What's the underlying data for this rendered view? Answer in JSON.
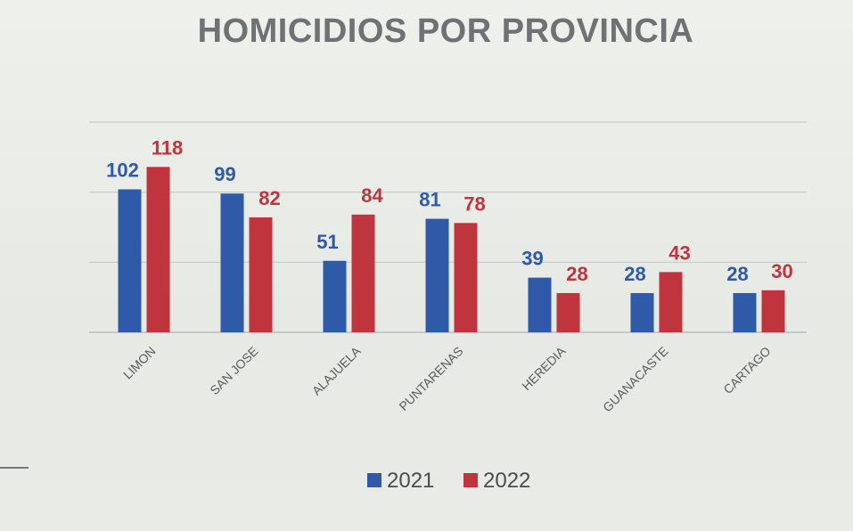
{
  "chart_data": {
    "type": "bar",
    "title": "HOMICIDIOS POR PROVINCIA",
    "categories": [
      "LIMON",
      "SAN JOSE",
      "ALAJUELA",
      "PUNTARENAS",
      "HEREDIA",
      "GUANACASTE",
      "CARTAGO"
    ],
    "series": [
      {
        "name": "2021",
        "color": "#2f5aa8",
        "values": [
          102,
          99,
          51,
          81,
          39,
          28,
          28
        ]
      },
      {
        "name": "2022",
        "color": "#c0353d",
        "values": [
          118,
          82,
          84,
          78,
          28,
          43,
          30
        ]
      }
    ],
    "ylim": [
      0,
      150
    ],
    "gridlines": [
      0,
      50,
      100,
      150
    ],
    "legend_position": "bottom-center"
  }
}
